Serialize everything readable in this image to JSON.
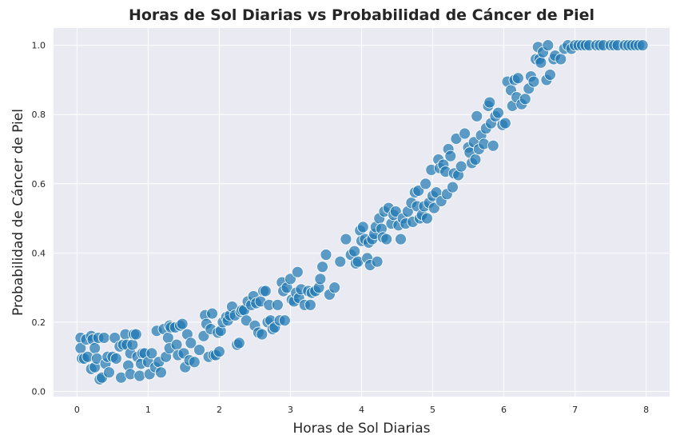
{
  "chart_data": {
    "type": "scatter",
    "title": "Horas de Sol Diarias vs Probabilidad de Cáncer de Piel",
    "xlabel": "Horas de Sol Diarias",
    "ylabel": "Probabilidad de Cáncer de Piel",
    "xlim": [
      -0.33,
      8.33
    ],
    "ylim": [
      -0.015,
      1.05
    ],
    "xticks": [
      "0",
      "1",
      "2",
      "3",
      "4",
      "5",
      "6",
      "7",
      "8"
    ],
    "yticks": [
      "0.0",
      "0.2",
      "0.4",
      "0.6",
      "0.8",
      "1.0"
    ],
    "grid": true,
    "marker_color": "#1f77b4",
    "background_color": "#eaeaf2",
    "points": [
      [
        0.05,
        0.155
      ],
      [
        0.05,
        0.125
      ],
      [
        0.07,
        0.095
      ],
      [
        0.1,
        0.095
      ],
      [
        0.13,
        0.15
      ],
      [
        0.15,
        0.1
      ],
      [
        0.2,
        0.16
      ],
      [
        0.2,
        0.065
      ],
      [
        0.22,
        0.15
      ],
      [
        0.25,
        0.07
      ],
      [
        0.25,
        0.125
      ],
      [
        0.28,
        0.095
      ],
      [
        0.3,
        0.155
      ],
      [
        0.32,
        0.035
      ],
      [
        0.35,
        0.04
      ],
      [
        0.38,
        0.155
      ],
      [
        0.4,
        0.08
      ],
      [
        0.43,
        0.1
      ],
      [
        0.45,
        0.055
      ],
      [
        0.5,
        0.1
      ],
      [
        0.53,
        0.155
      ],
      [
        0.55,
        0.095
      ],
      [
        0.6,
        0.13
      ],
      [
        0.62,
        0.04
      ],
      [
        0.65,
        0.135
      ],
      [
        0.68,
        0.165
      ],
      [
        0.7,
        0.135
      ],
      [
        0.72,
        0.075
      ],
      [
        0.75,
        0.05
      ],
      [
        0.75,
        0.11
      ],
      [
        0.78,
        0.135
      ],
      [
        0.8,
        0.165
      ],
      [
        0.83,
        0.165
      ],
      [
        0.85,
        0.1
      ],
      [
        0.88,
        0.045
      ],
      [
        0.9,
        0.08
      ],
      [
        0.92,
        0.11
      ],
      [
        0.95,
        0.11
      ],
      [
        1.0,
        0.085
      ],
      [
        1.02,
        0.05
      ],
      [
        1.05,
        0.11
      ],
      [
        1.1,
        0.07
      ],
      [
        1.12,
        0.175
      ],
      [
        1.15,
        0.085
      ],
      [
        1.18,
        0.055
      ],
      [
        1.22,
        0.18
      ],
      [
        1.25,
        0.1
      ],
      [
        1.28,
        0.155
      ],
      [
        1.3,
        0.125
      ],
      [
        1.3,
        0.19
      ],
      [
        1.32,
        0.185
      ],
      [
        1.38,
        0.185
      ],
      [
        1.4,
        0.135
      ],
      [
        1.42,
        0.105
      ],
      [
        1.45,
        0.19
      ],
      [
        1.48,
        0.195
      ],
      [
        1.5,
        0.11
      ],
      [
        1.52,
        0.07
      ],
      [
        1.55,
        0.165
      ],
      [
        1.58,
        0.09
      ],
      [
        1.6,
        0.14
      ],
      [
        1.65,
        0.085
      ],
      [
        1.72,
        0.12
      ],
      [
        1.78,
        0.16
      ],
      [
        1.8,
        0.22
      ],
      [
        1.82,
        0.195
      ],
      [
        1.85,
        0.1
      ],
      [
        1.88,
        0.18
      ],
      [
        1.9,
        0.225
      ],
      [
        1.92,
        0.105
      ],
      [
        1.95,
        0.105
      ],
      [
        1.98,
        0.17
      ],
      [
        2.0,
        0.115
      ],
      [
        2.02,
        0.175
      ],
      [
        2.05,
        0.2
      ],
      [
        2.1,
        0.215
      ],
      [
        2.12,
        0.205
      ],
      [
        2.15,
        0.22
      ],
      [
        2.18,
        0.245
      ],
      [
        2.22,
        0.22
      ],
      [
        2.25,
        0.135
      ],
      [
        2.28,
        0.14
      ],
      [
        2.3,
        0.23
      ],
      [
        2.32,
        0.235
      ],
      [
        2.35,
        0.235
      ],
      [
        2.38,
        0.205
      ],
      [
        2.4,
        0.26
      ],
      [
        2.45,
        0.25
      ],
      [
        2.48,
        0.275
      ],
      [
        2.5,
        0.19
      ],
      [
        2.52,
        0.255
      ],
      [
        2.55,
        0.17
      ],
      [
        2.58,
        0.26
      ],
      [
        2.6,
        0.165
      ],
      [
        2.62,
        0.29
      ],
      [
        2.65,
        0.29
      ],
      [
        2.68,
        0.2
      ],
      [
        2.7,
        0.25
      ],
      [
        2.72,
        0.205
      ],
      [
        2.75,
        0.18
      ],
      [
        2.78,
        0.185
      ],
      [
        2.82,
        0.25
      ],
      [
        2.85,
        0.205
      ],
      [
        2.88,
        0.315
      ],
      [
        2.9,
        0.29
      ],
      [
        2.92,
        0.205
      ],
      [
        2.95,
        0.3
      ],
      [
        3.0,
        0.325
      ],
      [
        3.02,
        0.265
      ],
      [
        3.05,
        0.26
      ],
      [
        3.08,
        0.285
      ],
      [
        3.1,
        0.345
      ],
      [
        3.12,
        0.27
      ],
      [
        3.15,
        0.295
      ],
      [
        3.2,
        0.25
      ],
      [
        3.25,
        0.29
      ],
      [
        3.28,
        0.25
      ],
      [
        3.3,
        0.285
      ],
      [
        3.35,
        0.29
      ],
      [
        3.4,
        0.3
      ],
      [
        3.42,
        0.325
      ],
      [
        3.45,
        0.36
      ],
      [
        3.5,
        0.395
      ],
      [
        3.55,
        0.28
      ],
      [
        3.62,
        0.3
      ],
      [
        3.7,
        0.375
      ],
      [
        3.78,
        0.44
      ],
      [
        3.85,
        0.395
      ],
      [
        3.9,
        0.405
      ],
      [
        3.92,
        0.37
      ],
      [
        3.95,
        0.375
      ],
      [
        3.98,
        0.465
      ],
      [
        4.0,
        0.435
      ],
      [
        4.02,
        0.475
      ],
      [
        4.05,
        0.44
      ],
      [
        4.08,
        0.385
      ],
      [
        4.1,
        0.43
      ],
      [
        4.12,
        0.365
      ],
      [
        4.15,
        0.44
      ],
      [
        4.18,
        0.455
      ],
      [
        4.2,
        0.475
      ],
      [
        4.22,
        0.375
      ],
      [
        4.25,
        0.5
      ],
      [
        4.28,
        0.47
      ],
      [
        4.3,
        0.445
      ],
      [
        4.32,
        0.52
      ],
      [
        4.35,
        0.44
      ],
      [
        4.38,
        0.53
      ],
      [
        4.42,
        0.485
      ],
      [
        4.45,
        0.51
      ],
      [
        4.48,
        0.52
      ],
      [
        4.52,
        0.48
      ],
      [
        4.55,
        0.44
      ],
      [
        4.58,
        0.5
      ],
      [
        4.62,
        0.485
      ],
      [
        4.65,
        0.52
      ],
      [
        4.7,
        0.545
      ],
      [
        4.72,
        0.49
      ],
      [
        4.75,
        0.575
      ],
      [
        4.78,
        0.535
      ],
      [
        4.8,
        0.58
      ],
      [
        4.82,
        0.5
      ],
      [
        4.85,
        0.51
      ],
      [
        4.88,
        0.535
      ],
      [
        4.9,
        0.6
      ],
      [
        4.92,
        0.5
      ],
      [
        4.95,
        0.545
      ],
      [
        4.98,
        0.64
      ],
      [
        5.0,
        0.565
      ],
      [
        5.02,
        0.53
      ],
      [
        5.05,
        0.575
      ],
      [
        5.08,
        0.67
      ],
      [
        5.1,
        0.645
      ],
      [
        5.12,
        0.55
      ],
      [
        5.15,
        0.655
      ],
      [
        5.18,
        0.635
      ],
      [
        5.2,
        0.57
      ],
      [
        5.22,
        0.7
      ],
      [
        5.25,
        0.68
      ],
      [
        5.28,
        0.59
      ],
      [
        5.3,
        0.63
      ],
      [
        5.33,
        0.73
      ],
      [
        5.36,
        0.625
      ],
      [
        5.4,
        0.65
      ],
      [
        5.45,
        0.745
      ],
      [
        5.5,
        0.705
      ],
      [
        5.52,
        0.69
      ],
      [
        5.55,
        0.66
      ],
      [
        5.58,
        0.72
      ],
      [
        5.6,
        0.67
      ],
      [
        5.62,
        0.795
      ],
      [
        5.65,
        0.7
      ],
      [
        5.68,
        0.74
      ],
      [
        5.72,
        0.715
      ],
      [
        5.75,
        0.76
      ],
      [
        5.78,
        0.825
      ],
      [
        5.8,
        0.835
      ],
      [
        5.82,
        0.775
      ],
      [
        5.85,
        0.71
      ],
      [
        5.88,
        0.795
      ],
      [
        5.92,
        0.805
      ],
      [
        5.98,
        0.77
      ],
      [
        6.02,
        0.775
      ],
      [
        6.05,
        0.895
      ],
      [
        6.1,
        0.87
      ],
      [
        6.12,
        0.825
      ],
      [
        6.15,
        0.9
      ],
      [
        6.18,
        0.85
      ],
      [
        6.2,
        0.905
      ],
      [
        6.25,
        0.83
      ],
      [
        6.3,
        0.845
      ],
      [
        6.35,
        0.875
      ],
      [
        6.38,
        0.91
      ],
      [
        6.42,
        0.895
      ],
      [
        6.45,
        0.96
      ],
      [
        6.48,
        0.995
      ],
      [
        6.5,
        0.96
      ],
      [
        6.52,
        0.95
      ],
      [
        6.55,
        0.98
      ],
      [
        6.6,
        0.9
      ],
      [
        6.62,
        1.0
      ],
      [
        6.65,
        0.915
      ],
      [
        6.7,
        0.96
      ],
      [
        6.72,
        0.97
      ],
      [
        6.8,
        0.96
      ],
      [
        6.85,
        0.99
      ],
      [
        6.9,
        1.0
      ],
      [
        6.95,
        0.99
      ],
      [
        7.0,
        1.0
      ],
      [
        7.05,
        1.0
      ],
      [
        7.1,
        1.0
      ],
      [
        7.15,
        1.0
      ],
      [
        7.2,
        1.0
      ],
      [
        7.3,
        1.0
      ],
      [
        7.35,
        1.0
      ],
      [
        7.4,
        1.0
      ],
      [
        7.5,
        1.0
      ],
      [
        7.55,
        1.0
      ],
      [
        7.6,
        1.0
      ],
      [
        7.7,
        1.0
      ],
      [
        7.75,
        1.0
      ],
      [
        7.8,
        1.0
      ],
      [
        7.85,
        1.0
      ],
      [
        7.9,
        1.0
      ],
      [
        7.95,
        1.0
      ]
    ]
  }
}
